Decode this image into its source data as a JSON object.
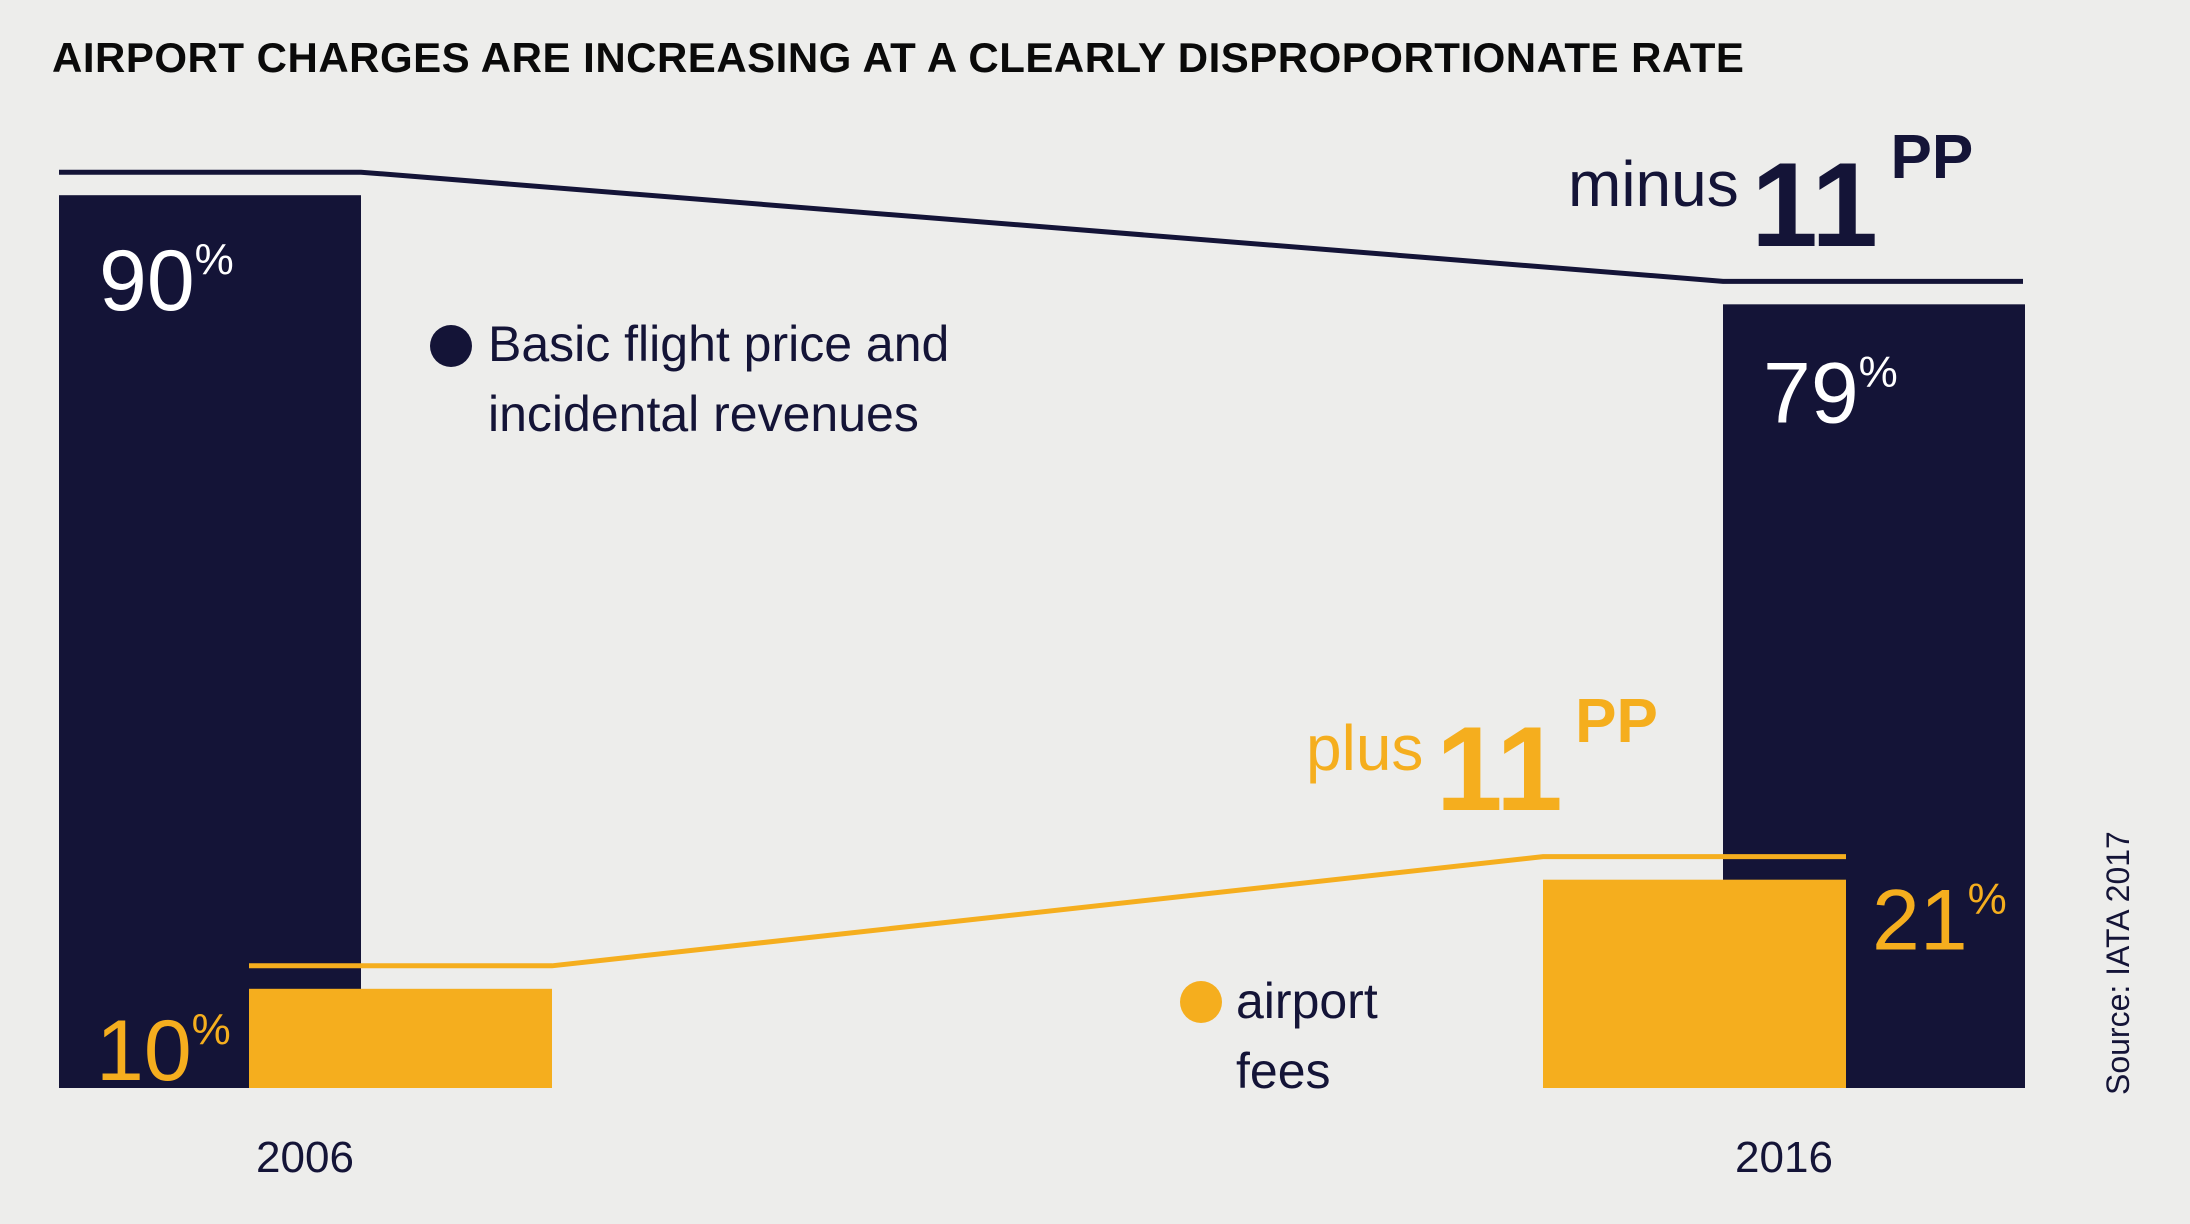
{
  "title": "AIRPORT CHARGES ARE INCREASING AT A CLEARLY DISPROPORTIONATE RATE",
  "source": "Source: IATA 2017",
  "colors": {
    "basic": "#141437",
    "fees": "#f5ae1e",
    "background": "#ededeb"
  },
  "legend": {
    "basic": [
      "Basic flight price and",
      "incidental revenues"
    ],
    "fees": [
      "airport",
      "fees"
    ]
  },
  "annotations": {
    "basic_change": {
      "word": "minus",
      "number": "11",
      "unit": "PP"
    },
    "fees_change": {
      "word": "plus",
      "number": "11",
      "unit": "PP"
    }
  },
  "chart_data": {
    "type": "bar",
    "categories": [
      "2006",
      "2016"
    ],
    "series": [
      {
        "name": "Basic flight price and incidental revenues",
        "values": [
          90,
          79
        ],
        "labels": [
          "90",
          "79"
        ],
        "unit": "%"
      },
      {
        "name": "airport fees",
        "values": [
          10,
          21
        ],
        "labels": [
          "10",
          "21"
        ],
        "unit": "%"
      }
    ],
    "ylim": [
      0,
      100
    ],
    "grid": false
  }
}
